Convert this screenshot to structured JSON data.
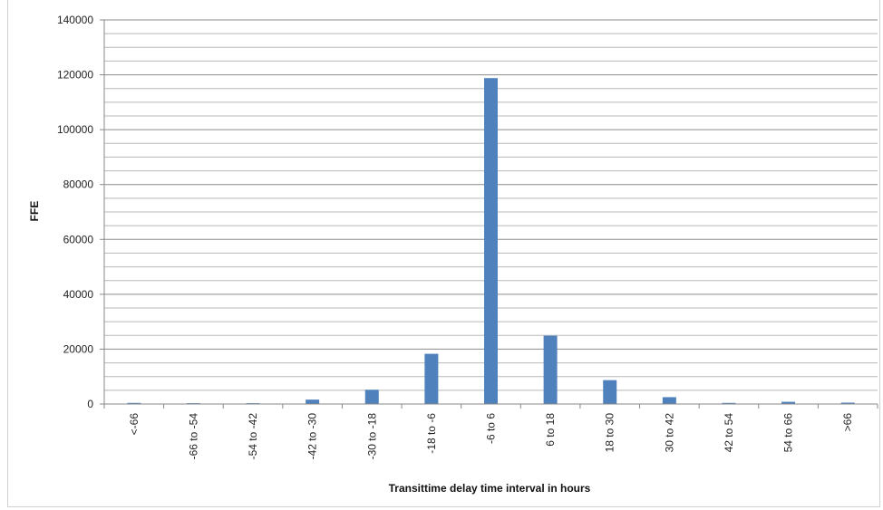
{
  "chart_data": {
    "type": "bar",
    "title": "",
    "xlabel": "Transittime delay time interval in hours",
    "ylabel": "FFE",
    "categories": [
      "<-66",
      "-66 to -54",
      "-54 to -42",
      "-42 to -30",
      "-30 to -18",
      "-18 to -6",
      "-6 to 6",
      "6 to 18",
      "18 to 30",
      "30 to 42",
      "42 to 54",
      "54 to 66",
      ">66"
    ],
    "values": [
      400,
      300,
      300,
      1600,
      5200,
      18300,
      118800,
      24900,
      8700,
      2500,
      400,
      800,
      500
    ],
    "ylim": [
      0,
      140000
    ],
    "yticks": [
      0,
      20000,
      40000,
      60000,
      80000,
      100000,
      120000,
      140000
    ],
    "ytick_labels": [
      "0",
      "20000",
      "40000",
      "60000",
      "80000",
      "100000",
      "120000",
      "140000"
    ],
    "grid": true,
    "bar_color": "#4f81bd"
  }
}
